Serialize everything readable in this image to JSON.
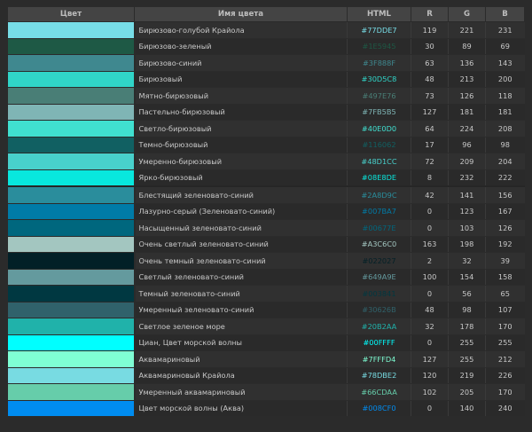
{
  "table": {
    "headers": {
      "color": "Цвет",
      "name": "Имя цвета",
      "html": "HTML",
      "r": "R",
      "g": "G",
      "b": "B"
    },
    "rows": [
      {
        "name": "Бирюзово-голубой Крайола",
        "hex": "#77DDE7",
        "r": "119",
        "g": "221",
        "b": "231",
        "swatch": "#77DDE7",
        "hex_color": "#77DDE7"
      },
      {
        "name": "Бирюзово-зеленый",
        "hex": "#1E5945",
        "r": "30",
        "g": "89",
        "b": "69",
        "swatch": "#1E5945",
        "hex_color": "#1E5945"
      },
      {
        "name": "Бирюзово-синий",
        "hex": "#3F888F",
        "r": "63",
        "g": "136",
        "b": "143",
        "swatch": "#3F888F",
        "hex_color": "#3F888F"
      },
      {
        "name": "Бирюзовый",
        "hex": "#30D5C8",
        "r": "48",
        "g": "213",
        "b": "200",
        "swatch": "#30D5C8",
        "hex_color": "#30D5C8"
      },
      {
        "name": "Мятно-бирюзовый",
        "hex": "#497E76",
        "r": "73",
        "g": "126",
        "b": "118",
        "swatch": "#497E76",
        "hex_color": "#497E76"
      },
      {
        "name": "Пастельно-бирюзовый",
        "hex": "#7FB5B5",
        "r": "127",
        "g": "181",
        "b": "181",
        "swatch": "#7FB5B5",
        "hex_color": "#7FB5B5"
      },
      {
        "name": "Светло-бирюзовый",
        "hex": "#40E0D0",
        "r": "64",
        "g": "224",
        "b": "208",
        "swatch": "#40E0D0",
        "hex_color": "#40E0D0"
      },
      {
        "name": "Темно-бирюзовый",
        "hex": "#116062",
        "r": "17",
        "g": "96",
        "b": "98",
        "swatch": "#116062",
        "hex_color": "#116062"
      },
      {
        "name": "Умеренно-бирюзовый",
        "hex": "#48D1CC",
        "r": "72",
        "g": "209",
        "b": "204",
        "swatch": "#48D1CC",
        "hex_color": "#48D1CC"
      },
      {
        "name": "Ярко-бирюзовый",
        "hex": "#08E8DE",
        "r": "8",
        "g": "232",
        "b": "222",
        "swatch": "#08E8DE",
        "hex_color": "#08E8DE"
      },
      {
        "name": "Блестящий зеленовато-синий",
        "hex": "#2A8D9C",
        "r": "42",
        "g": "141",
        "b": "156",
        "swatch": "#2A8D9C",
        "hex_color": "#2A8D9C"
      },
      {
        "name": "Лазурно-серый (Зеленовато-синий)",
        "hex": "#007BA7",
        "r": "0",
        "g": "123",
        "b": "167",
        "swatch": "#007BA7",
        "hex_color": "#007BA7"
      },
      {
        "name": "Насыщенный зеленовато-синий",
        "hex": "#00677E",
        "r": "0",
        "g": "103",
        "b": "126",
        "swatch": "#00677E",
        "hex_color": "#00677E"
      },
      {
        "name": "Очень светлый зеленовато-синий",
        "hex": "#A3C6C0",
        "r": "163",
        "g": "198",
        "b": "192",
        "swatch": "#A3C6C0",
        "hex_color": "#A3C6C0"
      },
      {
        "name": "Очень темный зеленовато-синий",
        "hex": "#022027",
        "r": "2",
        "g": "32",
        "b": "39",
        "swatch": "#022027",
        "hex_color": "#022027"
      },
      {
        "name": "Светлый зеленовато-синий",
        "hex": "#649A9E",
        "r": "100",
        "g": "154",
        "b": "158",
        "swatch": "#649A9E",
        "hex_color": "#649A9E"
      },
      {
        "name": "Темный зеленовато-синий",
        "hex": "#003841",
        "r": "0",
        "g": "56",
        "b": "65",
        "swatch": "#003841",
        "hex_color": "#003841"
      },
      {
        "name": "Умеренный зеленовато-синий",
        "hex": "#30626B",
        "r": "48",
        "g": "98",
        "b": "107",
        "swatch": "#30626B",
        "hex_color": "#30626B"
      },
      {
        "name": "Светлое зеленое море",
        "hex": "#20B2AA",
        "r": "32",
        "g": "178",
        "b": "170",
        "swatch": "#20B2AA",
        "hex_color": "#20B2AA"
      },
      {
        "name": "Циан, Цвет морской волны",
        "hex": "#00FFFF",
        "r": "0",
        "g": "255",
        "b": "255",
        "swatch": "#00FFFF",
        "hex_color": "#00FFFF"
      },
      {
        "name": "Аквамариновый",
        "hex": "#7FFFD4",
        "r": "127",
        "g": "255",
        "b": "212",
        "swatch": "#7FFFD4",
        "hex_color": "#7FFFD4"
      },
      {
        "name": "Аквамариновый Крайола",
        "hex": "#78DBE2",
        "r": "120",
        "g": "219",
        "b": "226",
        "swatch": "#78DBE2",
        "hex_color": "#78DBE2"
      },
      {
        "name": "Умеренный аквамариновый",
        "hex": "#66CDAA",
        "r": "102",
        "g": "205",
        "b": "170",
        "swatch": "#66CDAA",
        "hex_color": "#66CDAA"
      },
      {
        "name": "Цвет морской волны (Аква)",
        "hex": "#008CF0",
        "r": "0",
        "g": "140",
        "b": "240",
        "swatch": "#008CF0",
        "hex_color": "#008CF0"
      }
    ]
  }
}
